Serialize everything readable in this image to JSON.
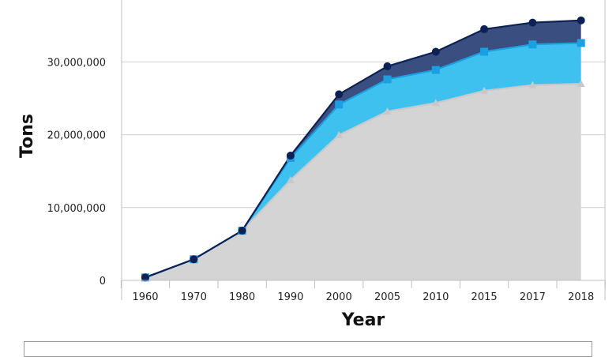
{
  "chart_data": {
    "type": "area",
    "stacked": true,
    "xlabel": "Year",
    "ylabel": "Tons",
    "categories": [
      "1960",
      "1970",
      "1980",
      "1990",
      "2000",
      "2005",
      "2010",
      "2015",
      "2017",
      "2018"
    ],
    "ylim": [
      0,
      38000000
    ],
    "yticks": [
      0,
      10000000,
      20000000,
      30000000
    ],
    "ytick_labels": [
      "0",
      "10,000,000",
      "20,000,000",
      "30,000,000"
    ],
    "grid": true,
    "series": [
      {
        "color": "#d4d4d4",
        "line_color": "#c8c8c8",
        "marker": "triangle",
        "values": [
          390000,
          2900000,
          6830000,
          13780000,
          19950000,
          23200000,
          24370000,
          26040000,
          26820000,
          27000000
        ]
      },
      {
        "color": "#3fc1f0",
        "line_color": "#1aa0e0",
        "marker": "square",
        "cumulative": [
          400000,
          2900000,
          6830000,
          16800000,
          24150000,
          27600000,
          28900000,
          31400000,
          32400000,
          32600000
        ]
      },
      {
        "color": "#3a4f80",
        "line_color": "#0c2155",
        "marker": "circle",
        "cumulative": [
          400000,
          2900000,
          6830000,
          17130000,
          25550000,
          29400000,
          31400000,
          34500000,
          35400000,
          35700000
        ]
      }
    ]
  }
}
